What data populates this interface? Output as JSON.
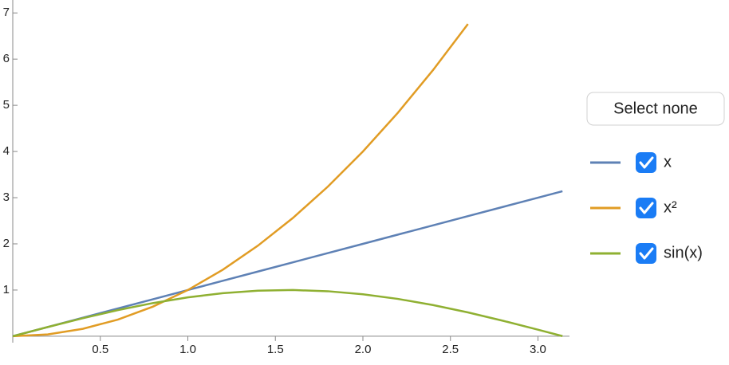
{
  "chart_data": {
    "type": "line",
    "x": [
      0,
      0.2,
      0.4,
      0.6,
      0.8,
      1.0,
      1.2,
      1.4,
      1.6,
      1.8,
      2.0,
      2.2,
      2.4,
      2.6,
      2.8,
      3.0,
      3.14
    ],
    "series": [
      {
        "name": "x",
        "color": "#5e81b5",
        "values": [
          0,
          0.2,
          0.4,
          0.6,
          0.8,
          1.0,
          1.2,
          1.4,
          1.6,
          1.8,
          2.0,
          2.2,
          2.4,
          2.6,
          2.8,
          3.0,
          3.14
        ]
      },
      {
        "name": "x²",
        "color": "#e19c24",
        "values": [
          0,
          0.04,
          0.16,
          0.36,
          0.64,
          1.0,
          1.44,
          1.96,
          2.56,
          3.24,
          4.0,
          4.84,
          5.76,
          6.76,
          null,
          null,
          null
        ]
      },
      {
        "name": "sin(x)",
        "color": "#8fb032",
        "values": [
          0,
          0.199,
          0.389,
          0.565,
          0.717,
          0.841,
          0.932,
          0.985,
          1.0,
          0.974,
          0.909,
          0.808,
          0.675,
          0.516,
          0.335,
          0.141,
          0.002
        ]
      }
    ],
    "xlim": [
      0,
      3.18
    ],
    "ylim": [
      -0.14,
      7.28
    ],
    "xticks": [
      0.5,
      {
        "value": 1,
        "label": "1.0"
      },
      1.5,
      {
        "value": 2,
        "label": "2.0"
      },
      2.5,
      {
        "value": 3,
        "label": "3.0"
      }
    ],
    "yticks": [
      1,
      2,
      3,
      4,
      5,
      6,
      7
    ],
    "button": "Select none"
  }
}
